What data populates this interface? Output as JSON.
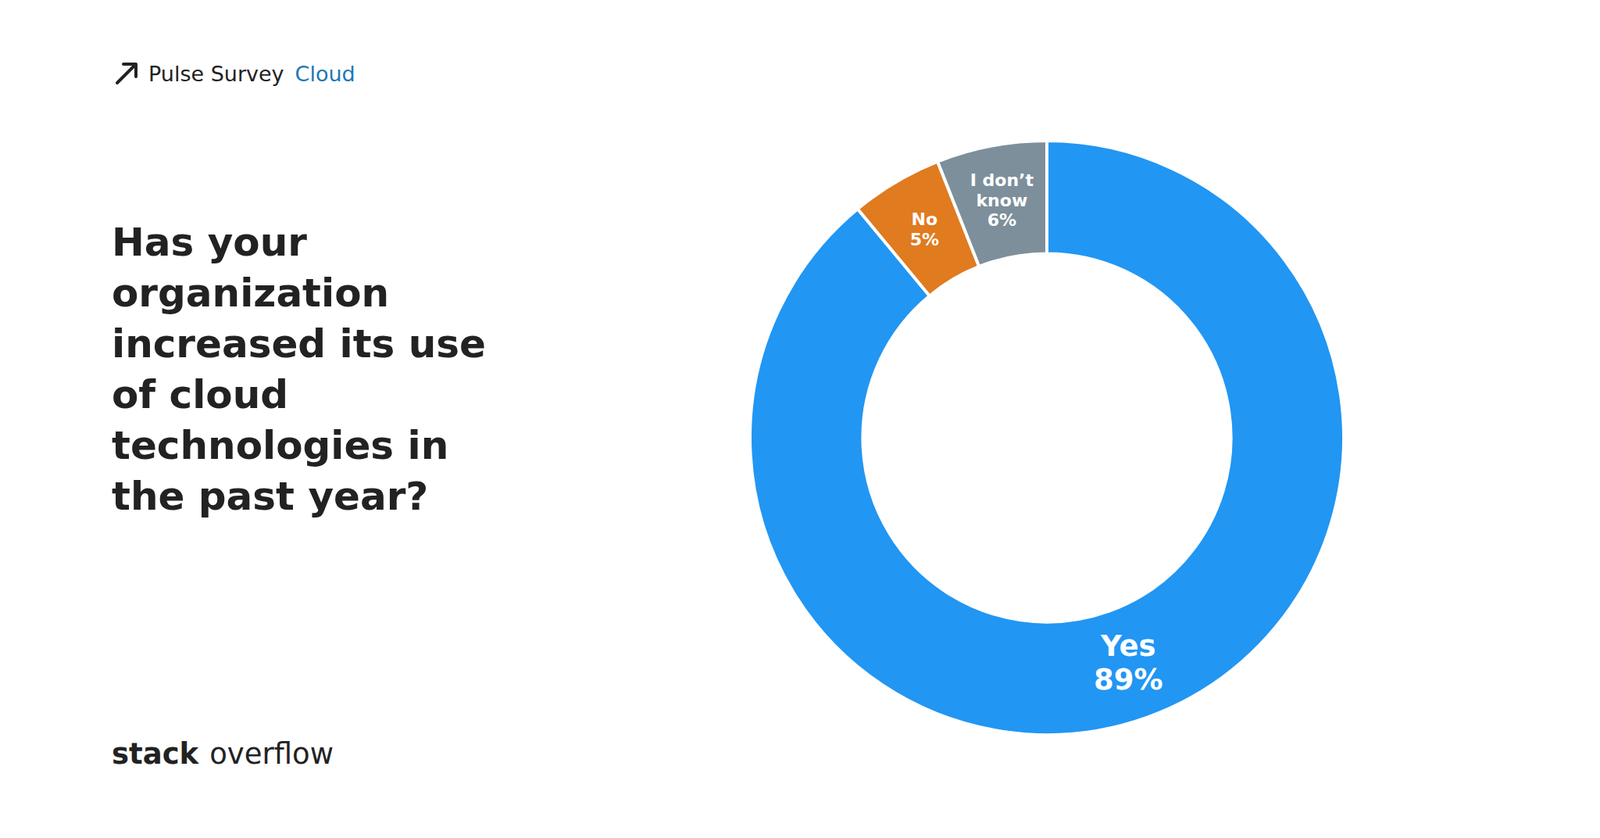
{
  "chart_data": {
    "type": "pie",
    "title": "Has your\norganization\nincreased its use\nof cloud\ntechnologies in\nthe past year?",
    "annotations": [
      "Pulse Survey",
      "Cloud",
      "stack",
      "overflow"
    ],
    "categories": [
      "Yes",
      "No",
      "I don’t\nknow"
    ],
    "values": [
      89,
      5,
      6
    ],
    "value_labels": [
      "89%",
      "5%",
      "6%"
    ],
    "colors": [
      "#2196f3",
      "#e07b20",
      "#7d8f9b"
    ],
    "data_labels": true
  }
}
